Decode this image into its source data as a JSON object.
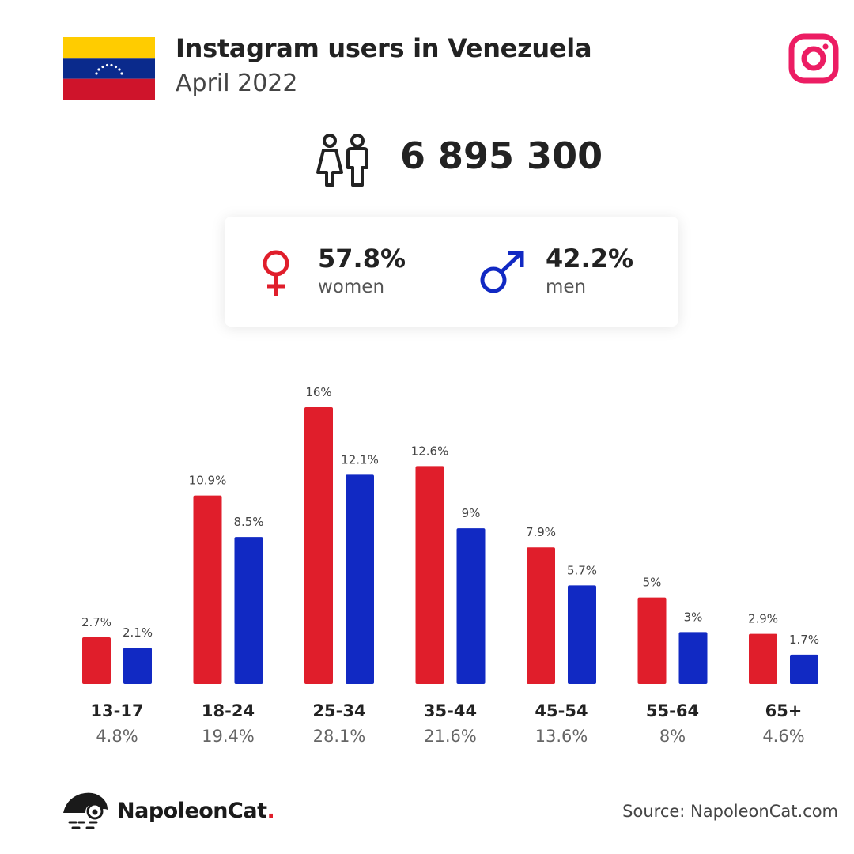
{
  "header": {
    "title": "Instagram users in Venezuela",
    "subtitle": "April 2022"
  },
  "icons": {
    "flag": "venezuela-flag-icon",
    "platform": "instagram-logo-icon",
    "users": "users-couple-icon",
    "female": "female-symbol-icon",
    "male": "male-symbol-icon"
  },
  "total_users": "6 895 300",
  "gender": {
    "women": {
      "pct": "57.8%",
      "label": "women"
    },
    "men": {
      "pct": "42.2%",
      "label": "men"
    }
  },
  "colors": {
    "women": "#e01e2b",
    "men": "#1129c3",
    "instagram_gradient": [
      "#f0145a",
      "#e1306c"
    ]
  },
  "chart_data": {
    "type": "bar",
    "categories": [
      "13-17",
      "18-24",
      "25-34",
      "35-44",
      "45-54",
      "55-64",
      "65+"
    ],
    "category_totals": [
      "4.8%",
      "19.4%",
      "28.1%",
      "21.6%",
      "13.6%",
      "8%",
      "4.6%"
    ],
    "series": [
      {
        "name": "women",
        "color": "#e01e2b",
        "values": [
          2.7,
          10.9,
          16,
          12.6,
          7.9,
          5,
          2.9
        ],
        "labels": [
          "2.7%",
          "10.9%",
          "16%",
          "12.6%",
          "7.9%",
          "5%",
          "2.9%"
        ]
      },
      {
        "name": "men",
        "color": "#1129c3",
        "values": [
          2.1,
          8.5,
          12.1,
          9,
          5.7,
          3,
          1.7
        ],
        "labels": [
          "2.1%",
          "8.5%",
          "12.1%",
          "9%",
          "5.7%",
          "3%",
          "1.7%"
        ]
      }
    ],
    "ylim": [
      0,
      16
    ],
    "grid": false,
    "legend": "none"
  },
  "footer": {
    "brand": "NapoleonCat",
    "brand_dot": ".",
    "source": "Source: NapoleonCat.com"
  }
}
